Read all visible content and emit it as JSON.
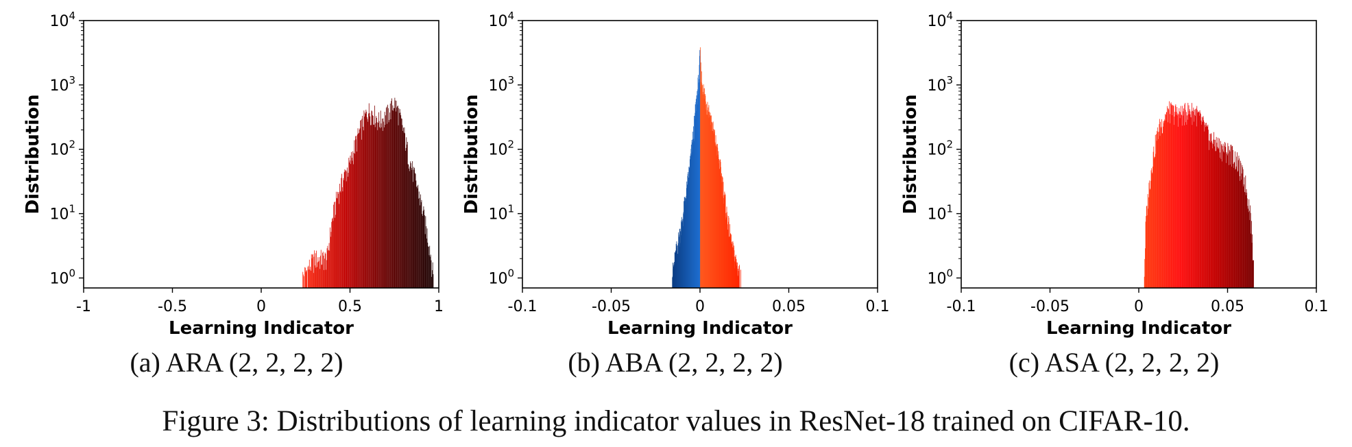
{
  "figure_caption": "Figure 3: Distributions of learning indicator values in ResNet-18 trained on CIFAR-10.",
  "chart_data": [
    {
      "type": "histogram",
      "caption": "(a) ARA (2, 2, 2, 2)",
      "xlabel": "Learning Indicator",
      "ylabel": "Distribution",
      "xlim": [
        -1,
        1
      ],
      "ylim": [
        0.7,
        10000
      ],
      "yscale": "log",
      "xticks": [
        -1,
        -0.5,
        0,
        0.5,
        1
      ],
      "xtick_labels": [
        "-1",
        "-0.5",
        "0",
        "0.5",
        "1"
      ],
      "yticks": [
        1,
        10,
        100,
        1000,
        10000
      ],
      "ytick_labels": [
        "10^0",
        "10^1",
        "10^2",
        "10^3",
        "10^4"
      ],
      "colormap": "red to black",
      "colors": [
        "#ff2a10",
        "#c00000",
        "#600000",
        "#1a0000"
      ],
      "profile": {
        "x": [
          0.23,
          0.3,
          0.37,
          0.4,
          0.43,
          0.47,
          0.5,
          0.53,
          0.57,
          0.6,
          0.63,
          0.66,
          0.69,
          0.72,
          0.75,
          0.77,
          0.8,
          0.83,
          0.86,
          0.89,
          0.92,
          0.95,
          0.97
        ],
        "y": [
          1,
          2,
          2,
          8,
          20,
          40,
          60,
          120,
          250,
          400,
          380,
          280,
          300,
          380,
          550,
          400,
          200,
          80,
          40,
          20,
          8,
          3,
          1
        ]
      }
    },
    {
      "type": "histogram",
      "caption": "(b) ABA (2, 2, 2, 2)",
      "xlabel": "Learning Indicator",
      "ylabel": "Distribution",
      "xlim": [
        -0.1,
        0.1
      ],
      "ylim": [
        0.7,
        10000
      ],
      "yscale": "log",
      "xticks": [
        -0.1,
        -0.05,
        0,
        0.05,
        0.1
      ],
      "xtick_labels": [
        "-0.1",
        "-0.05",
        "0",
        "0.05",
        "0.1"
      ],
      "yticks": [
        1,
        10,
        100,
        1000,
        10000
      ],
      "ytick_labels": [
        "10^0",
        "10^1",
        "10^2",
        "10^3",
        "10^4"
      ],
      "colors": [
        "#0a3a80",
        "#1f6fd0",
        "#ff5a1f",
        "#ff2400"
      ],
      "profile": {
        "x": [
          -0.016,
          -0.013,
          -0.01,
          -0.007,
          -0.004,
          -0.002,
          -0.0005,
          0,
          0.0005,
          0.002,
          0.004,
          0.006,
          0.009,
          0.012,
          0.015,
          0.018,
          0.021,
          0.023
        ],
        "y": [
          1,
          3,
          8,
          30,
          150,
          600,
          1500,
          3500,
          1500,
          800,
          500,
          300,
          120,
          40,
          10,
          3,
          1.5,
          1
        ]
      }
    },
    {
      "type": "histogram",
      "caption": "(c) ASA (2, 2, 2, 2)",
      "xlabel": "Learning Indicator",
      "ylabel": "Distribution",
      "xlim": [
        -0.1,
        0.1
      ],
      "ylim": [
        0.7,
        10000
      ],
      "yscale": "log",
      "xticks": [
        -0.1,
        -0.05,
        0,
        0.05,
        0.1
      ],
      "xtick_labels": [
        "-0.1",
        "-0.05",
        "0",
        "0.05",
        "0.1"
      ],
      "yticks": [
        1,
        10,
        100,
        1000,
        10000
      ],
      "ytick_labels": [
        "10^0",
        "10^1",
        "10^2",
        "10^3",
        "10^4"
      ],
      "colormap": "orange-red to dark red",
      "colors": [
        "#ff3c10",
        "#ff1010",
        "#c00000",
        "#780000"
      ],
      "profile": {
        "x": [
          0.003,
          0.004,
          0.006,
          0.008,
          0.011,
          0.014,
          0.017,
          0.02,
          0.024,
          0.028,
          0.032,
          0.036,
          0.04,
          0.044,
          0.048,
          0.052,
          0.056,
          0.06,
          0.063,
          0.065
        ],
        "y": [
          1,
          8,
          30,
          80,
          200,
          300,
          400,
          380,
          350,
          400,
          380,
          250,
          150,
          120,
          100,
          90,
          60,
          30,
          10,
          1
        ]
      }
    }
  ]
}
